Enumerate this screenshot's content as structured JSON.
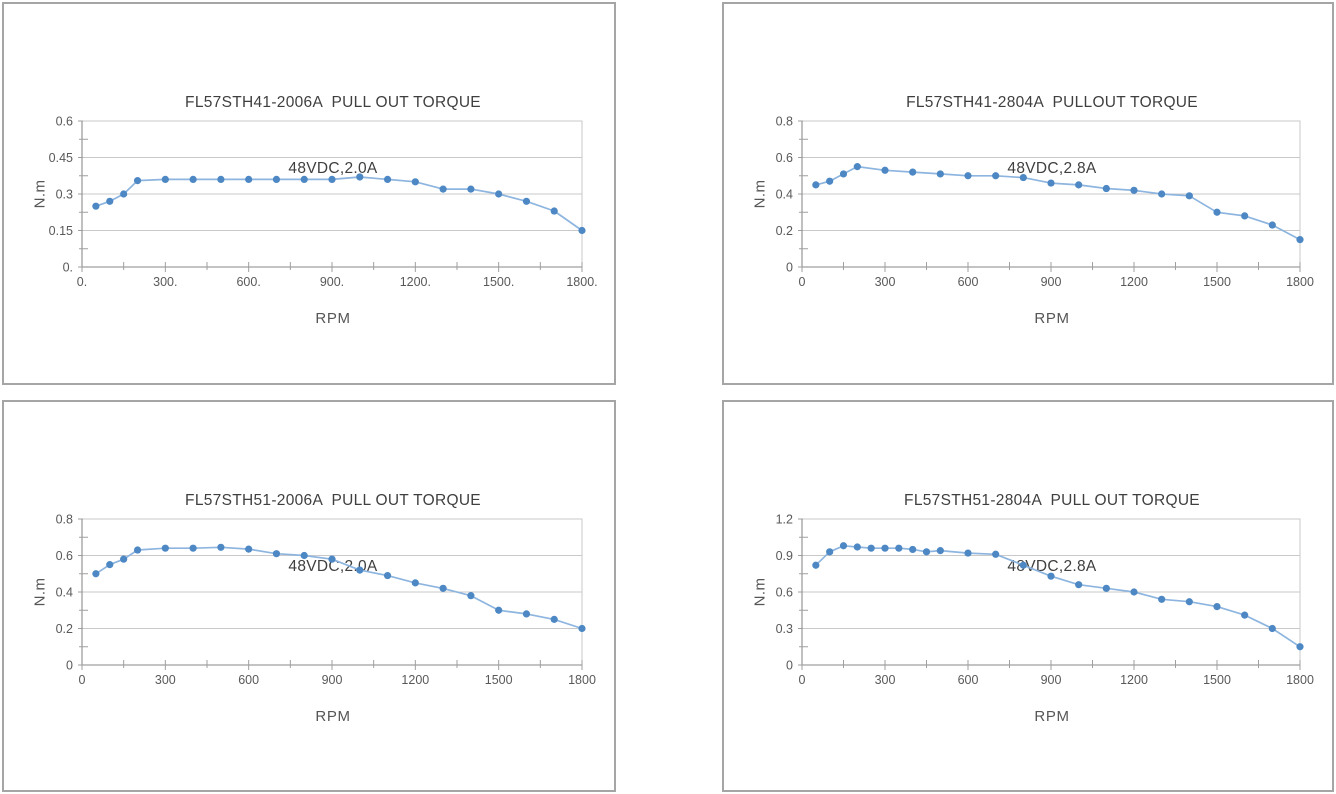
{
  "colors": {
    "series_line": "#8db5df",
    "series_marker": "#4d88c4",
    "gridline": "#c9c9c9",
    "axis": "#9f9f9f",
    "panel_border": "#a5a5a5",
    "title_text": "#3f3f3f",
    "tick_text": "#595959"
  },
  "chart_data": [
    {
      "type": "line",
      "title": "FL57STH41-2006A  PULL OUT TORQUE",
      "subtitle": "48VDC,2.0A",
      "xlabel": "RPM",
      "ylabel": "N.m",
      "xlim": [
        0,
        1800
      ],
      "ylim": [
        0,
        0.6
      ],
      "xtick_values": [
        0,
        300,
        600,
        900,
        1200,
        1500,
        1800
      ],
      "xtick_labels": [
        "0.",
        "300.",
        "600.",
        "900.",
        "1200.",
        "1500.",
        "1800."
      ],
      "x_minor_interval": 150,
      "ytick_values": [
        0,
        0.15,
        0.3,
        0.45,
        0.6
      ],
      "ytick_labels": [
        "0.",
        "0.15",
        "0.3",
        "0.45",
        "0.6"
      ],
      "y_minor_interval": 0.075,
      "grid": "horizontal",
      "legend": "none",
      "marker": "circle",
      "x": [
        50,
        100,
        150,
        200,
        300,
        400,
        500,
        600,
        700,
        800,
        900,
        1000,
        1100,
        1200,
        1300,
        1400,
        1500,
        1600,
        1700,
        1800
      ],
      "y": [
        0.25,
        0.27,
        0.3,
        0.355,
        0.36,
        0.36,
        0.36,
        0.36,
        0.36,
        0.36,
        0.36,
        0.37,
        0.36,
        0.35,
        0.32,
        0.32,
        0.3,
        0.27,
        0.23,
        0.15
      ]
    },
    {
      "type": "line",
      "title": "FL57STH41-2804A  PULLOUT TORQUE",
      "subtitle": "48VDC,2.8A",
      "xlabel": "RPM",
      "ylabel": "N.m",
      "xlim": [
        0,
        1800
      ],
      "ylim": [
        0,
        0.8
      ],
      "xtick_values": [
        0,
        300,
        600,
        900,
        1200,
        1500,
        1800
      ],
      "xtick_labels": [
        "0",
        "300",
        "600",
        "900",
        "1200",
        "1500",
        "1800"
      ],
      "x_minor_interval": 150,
      "ytick_values": [
        0,
        0.2,
        0.4,
        0.6,
        0.8
      ],
      "ytick_labels": [
        "0",
        "0.2",
        "0.4",
        "0.6",
        "0.8"
      ],
      "y_minor_interval": 0.1,
      "grid": "horizontal",
      "legend": "none",
      "marker": "circle",
      "x": [
        50,
        100,
        150,
        200,
        300,
        400,
        500,
        600,
        700,
        800,
        900,
        1000,
        1100,
        1200,
        1300,
        1400,
        1500,
        1600,
        1700,
        1800
      ],
      "y": [
        0.45,
        0.47,
        0.51,
        0.55,
        0.53,
        0.52,
        0.51,
        0.5,
        0.5,
        0.49,
        0.46,
        0.45,
        0.43,
        0.42,
        0.4,
        0.39,
        0.3,
        0.28,
        0.23,
        0.15
      ]
    },
    {
      "type": "line",
      "title": "FL57STH51-2006A  PULL OUT TORQUE",
      "subtitle": "48VDC,2.0A",
      "xlabel": "RPM",
      "ylabel": "N.m",
      "xlim": [
        0,
        1800
      ],
      "ylim": [
        0,
        0.8
      ],
      "xtick_values": [
        0,
        300,
        600,
        900,
        1200,
        1500,
        1800
      ],
      "xtick_labels": [
        "0",
        "300",
        "600",
        "900",
        "1200",
        "1500",
        "1800"
      ],
      "x_minor_interval": 150,
      "ytick_values": [
        0,
        0.2,
        0.4,
        0.6,
        0.8
      ],
      "ytick_labels": [
        "0",
        "0.2",
        "0.4",
        "0.6",
        "0.8"
      ],
      "y_minor_interval": 0.1,
      "grid": "horizontal",
      "legend": "none",
      "marker": "circle",
      "x": [
        50,
        100,
        150,
        200,
        300,
        400,
        500,
        600,
        700,
        800,
        900,
        1000,
        1100,
        1200,
        1300,
        1400,
        1500,
        1600,
        1700,
        1800
      ],
      "y": [
        0.5,
        0.55,
        0.58,
        0.63,
        0.64,
        0.64,
        0.645,
        0.635,
        0.61,
        0.6,
        0.58,
        0.52,
        0.49,
        0.45,
        0.42,
        0.38,
        0.3,
        0.28,
        0.25,
        0.2
      ]
    },
    {
      "type": "line",
      "title": "FL57STH51-2804A  PULL OUT TORQUE",
      "subtitle": "48VDC,2.8A",
      "xlabel": "RPM",
      "ylabel": "N.m",
      "xlim": [
        0,
        1800
      ],
      "ylim": [
        0,
        1.2
      ],
      "xtick_values": [
        0,
        300,
        600,
        900,
        1200,
        1500,
        1800
      ],
      "xtick_labels": [
        "0",
        "300",
        "600",
        "900",
        "1200",
        "1500",
        "1800"
      ],
      "x_minor_interval": 150,
      "ytick_values": [
        0,
        0.3,
        0.6,
        0.9,
        1.2
      ],
      "ytick_labels": [
        "0",
        "0.3",
        "0.6",
        "0.9",
        "1.2"
      ],
      "y_minor_interval": 0.15,
      "grid": "horizontal",
      "legend": "none",
      "marker": "circle",
      "x": [
        50,
        100,
        150,
        200,
        250,
        300,
        350,
        400,
        450,
        500,
        600,
        700,
        800,
        900,
        1000,
        1100,
        1200,
        1300,
        1400,
        1500,
        1600,
        1700,
        1800
      ],
      "y": [
        0.82,
        0.93,
        0.98,
        0.97,
        0.96,
        0.96,
        0.96,
        0.95,
        0.93,
        0.94,
        0.92,
        0.91,
        0.82,
        0.73,
        0.66,
        0.63,
        0.6,
        0.54,
        0.52,
        0.48,
        0.41,
        0.3,
        0.15
      ]
    }
  ]
}
